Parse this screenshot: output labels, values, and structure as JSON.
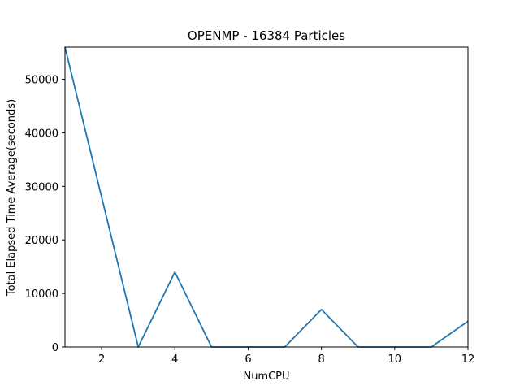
{
  "chart_data": {
    "type": "line",
    "title": "OPENMP - 16384 Particles",
    "xlabel": "NumCPU",
    "ylabel": "Total Elapsed Time Average(seconds)",
    "x": [
      1,
      2,
      3,
      4,
      5,
      6,
      7,
      8,
      9,
      10,
      11,
      12
    ],
    "series": [
      {
        "values": [
          56000,
          28000,
          0,
          14000,
          0,
          0,
          0,
          7000,
          0,
          0,
          0,
          4800
        ],
        "color": "#1f77b4"
      }
    ],
    "xlim": [
      1,
      12
    ],
    "ylim": [
      0,
      56000
    ],
    "xticks": [
      2,
      4,
      6,
      8,
      10,
      12
    ],
    "yticks": [
      0,
      10000,
      20000,
      30000,
      40000,
      50000
    ],
    "grid": false,
    "legend": "none"
  }
}
